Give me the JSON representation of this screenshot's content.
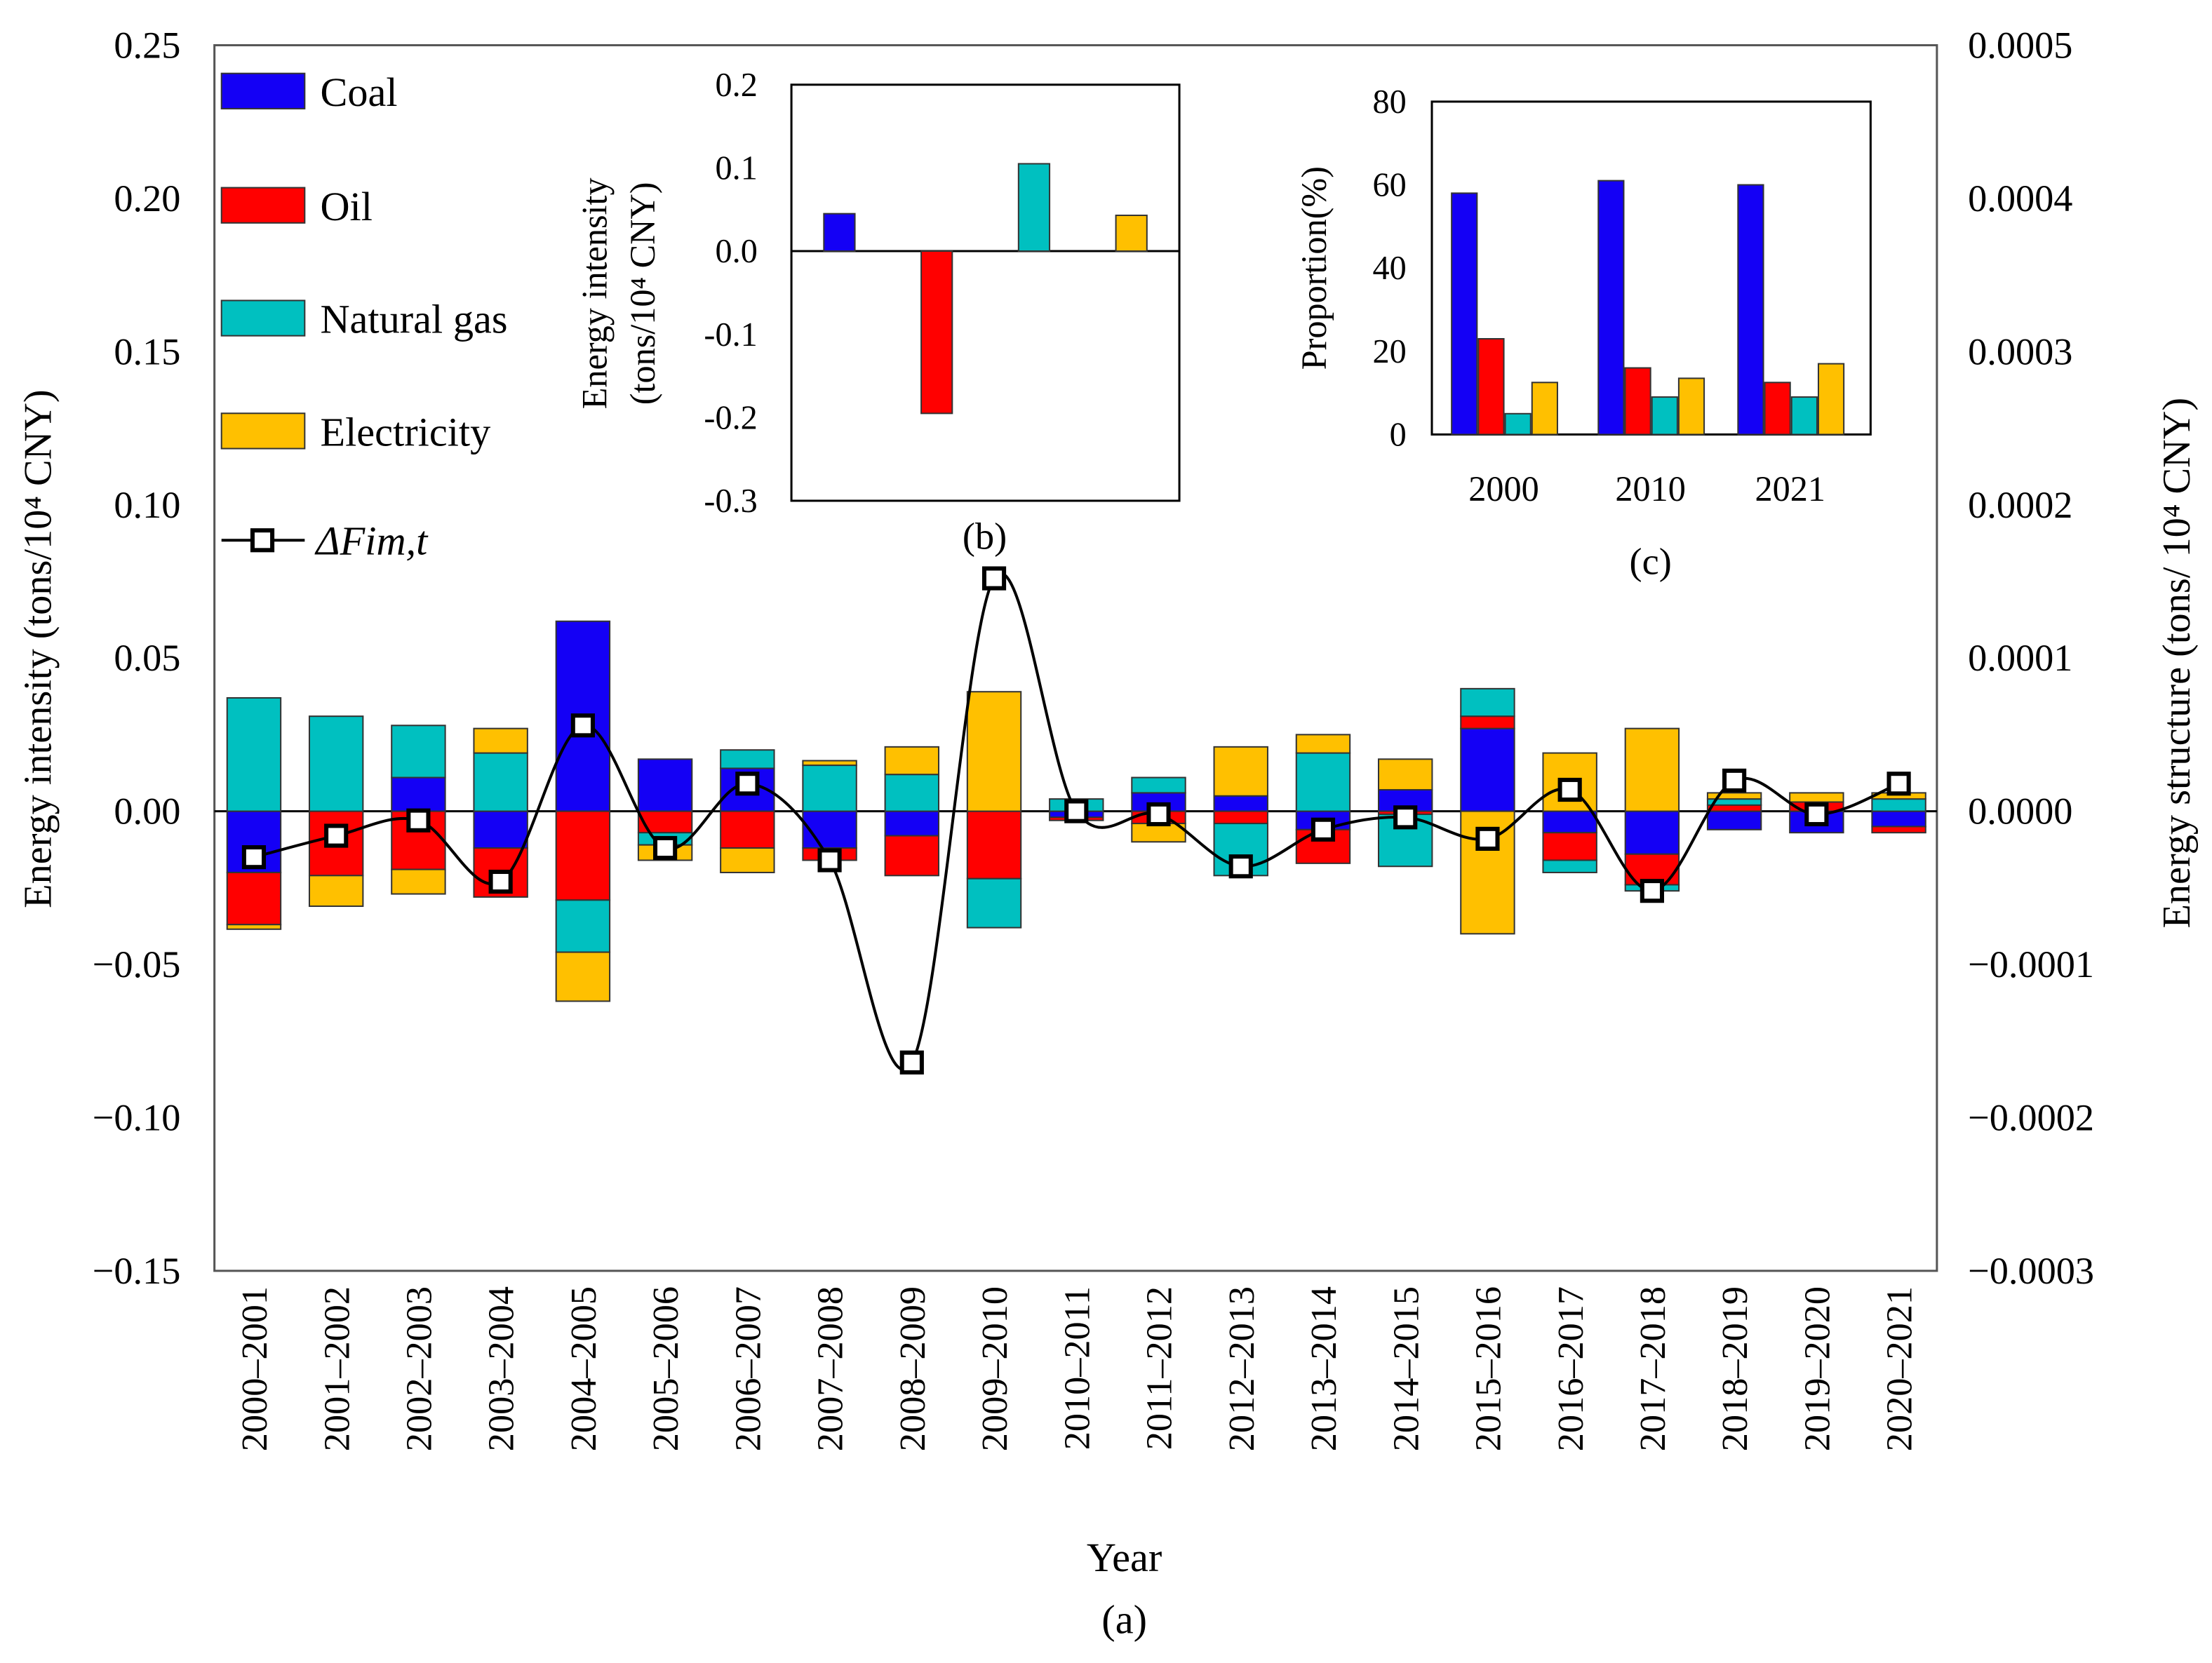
{
  "colors": {
    "Coal": "#1400f5",
    "Oil": "#ff0000",
    "Natural gas": "#00c0c0",
    "Electricity": "#ffc000",
    "line": "#000000"
  },
  "chart_data": [
    {
      "id": "a",
      "type": "bar",
      "stacked": true,
      "caption": "(a)",
      "xlabel": "Year",
      "ylabel": "Energy intensity (tons/10⁴ CNY)",
      "ylabel_right": "Energy structure (tons/ 10⁴ CNY)",
      "ylim": [
        -0.15,
        0.25
      ],
      "ylim_right": [
        -0.0003,
        0.0005
      ],
      "yticks": [
        "0.25",
        "0.20",
        "0.15",
        "0.10",
        "0.05",
        "0.00",
        "−0.05",
        "−0.10",
        "−0.15"
      ],
      "yticks_right": [
        "0.0005",
        "0.0004",
        "0.0003",
        "0.0002",
        "0.0001",
        "0.0000",
        "−0.0001",
        "−0.0002",
        "−0.0003"
      ],
      "legend_position": "top-left",
      "categories": [
        "2000–2001",
        "2001–2002",
        "2002–2003",
        "2003–2004",
        "2004–2005",
        "2005–2006",
        "2006–2007",
        "2007–2008",
        "2008–2009",
        "2009–2010",
        "2010–2011",
        "2011–2012",
        "2012–2013",
        "2013–2014",
        "2014–2015",
        "2015–2016",
        "2016–2017",
        "2017–2018",
        "2018–2019",
        "2019–2020",
        "2020–2021"
      ],
      "series": [
        {
          "name": "Coal",
          "values": [
            -0.02,
            0.0,
            0.011,
            -0.012,
            0.062,
            0.017,
            0.014,
            -0.012,
            -0.008,
            0.0,
            -0.002,
            0.006,
            0.005,
            -0.006,
            0.007,
            0.027,
            -0.007,
            -0.014,
            -0.006,
            -0.007,
            -0.005
          ]
        },
        {
          "name": "Oil",
          "values": [
            -0.017,
            -0.021,
            -0.019,
            -0.016,
            -0.029,
            -0.007,
            -0.012,
            -0.004,
            -0.013,
            -0.022,
            -0.001,
            -0.004,
            -0.004,
            -0.011,
            -0.001,
            0.004,
            -0.009,
            -0.01,
            0.002,
            0.003,
            -0.002
          ]
        },
        {
          "name": "Natural gas",
          "values": [
            0.037,
            0.031,
            0.017,
            0.019,
            -0.017,
            -0.004,
            0.006,
            0.015,
            0.012,
            -0.016,
            0.004,
            0.005,
            -0.017,
            0.019,
            -0.017,
            0.009,
            -0.004,
            -0.002,
            0.002,
            0.0,
            0.004
          ]
        },
        {
          "name": "Electricity",
          "values": [
            -0.0015,
            -0.01,
            -0.008,
            0.008,
            -0.016,
            -0.005,
            -0.008,
            0.0015,
            0.009,
            0.039,
            0.0,
            -0.006,
            0.016,
            0.006,
            0.01,
            -0.04,
            0.019,
            0.027,
            0.002,
            0.003,
            0.002
          ]
        }
      ],
      "line": {
        "name": "ΔFim,t",
        "values": [
          -0.015,
          -0.008,
          -0.003,
          -0.023,
          0.028,
          -0.012,
          0.009,
          -0.016,
          -0.082,
          0.076,
          0.0,
          -0.001,
          -0.018,
          -0.006,
          -0.002,
          -0.009,
          0.007,
          -0.026,
          0.01,
          -0.001,
          0.009
        ]
      }
    },
    {
      "id": "b",
      "type": "bar",
      "caption": "(b)",
      "ylabel": [
        "Energy intensity",
        "(tons/10⁴ CNY)"
      ],
      "ylim": [
        -0.3,
        0.2
      ],
      "yticks": [
        "0.2",
        "0.1",
        "0.0",
        "-0.1",
        "-0.2",
        "-0.3"
      ],
      "categories": [
        "Coal",
        "Oil",
        "Natural gas",
        "Electricity"
      ],
      "values": [
        0.045,
        -0.195,
        0.105,
        0.043
      ]
    },
    {
      "id": "c",
      "type": "bar",
      "caption": "(c)",
      "ylabel": "Proportion(%)",
      "ylim": [
        0,
        80
      ],
      "yticks": [
        "80",
        "60",
        "40",
        "20",
        "0"
      ],
      "categories": [
        "2000",
        "2010",
        "2021"
      ],
      "series": [
        {
          "name": "Coal",
          "values": [
            58,
            61,
            60
          ]
        },
        {
          "name": "Oil",
          "values": [
            23,
            16,
            12.5
          ]
        },
        {
          "name": "Natural gas",
          "values": [
            5,
            9,
            9
          ]
        },
        {
          "name": "Electricity",
          "values": [
            12.5,
            13.5,
            17
          ]
        }
      ]
    }
  ]
}
